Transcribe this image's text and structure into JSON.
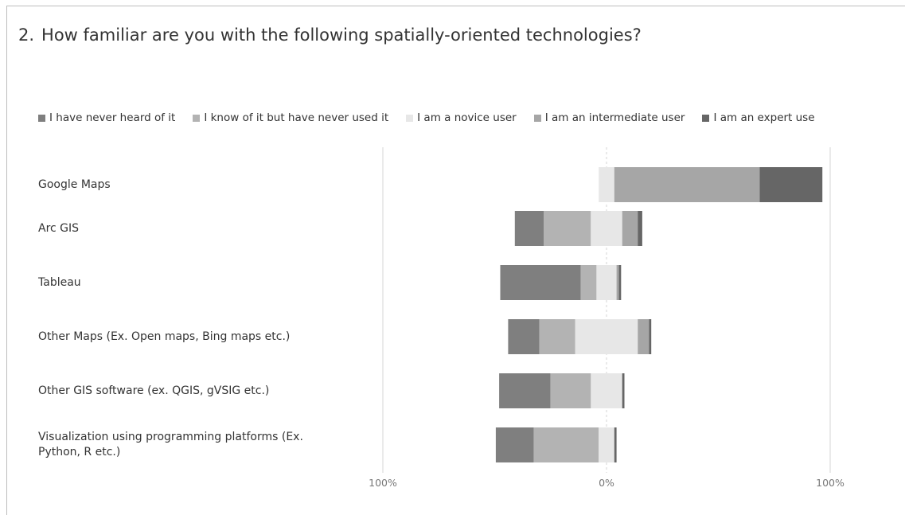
{
  "question": {
    "number": "2.",
    "text": "How familiar are you with the following spatially-oriented technologies?"
  },
  "chart_data": {
    "type": "bar",
    "orientation": "horizontal-diverging-stacked",
    "categories": [
      "Google Maps",
      "Arc GIS",
      "Tableau",
      "Other Maps (Ex. Open maps, Bing maps etc.)",
      "Other GIS software (ex. QGIS, gVSIG etc.)",
      "Visualization using programming platforms (Ex. Python, R etc.)"
    ],
    "series": [
      {
        "name": "I have never heard of it",
        "color": "#7f7f7f",
        "values": [
          0,
          13,
          36,
          14,
          23,
          17
        ]
      },
      {
        "name": "I know of it but have never used it",
        "color": "#b3b3b3",
        "values": [
          0,
          21,
          7,
          16,
          18,
          29
        ]
      },
      {
        "name": "I am a novice user",
        "color": "#e7e7e7",
        "values": [
          7,
          14,
          9,
          28,
          14,
          7
        ]
      },
      {
        "name": "I am an intermediate user",
        "color": "#a6a6a6",
        "values": [
          65,
          7,
          1,
          5,
          0,
          0
        ]
      },
      {
        "name": "I am an expert use",
        "color": "#666666",
        "values": [
          28,
          2,
          1,
          1,
          1,
          1
        ]
      }
    ],
    "neutral_series_index": 2,
    "xlim": [
      -100,
      100
    ],
    "tick_labels": [
      "100%",
      "0%",
      "100%"
    ],
    "grid": true
  }
}
